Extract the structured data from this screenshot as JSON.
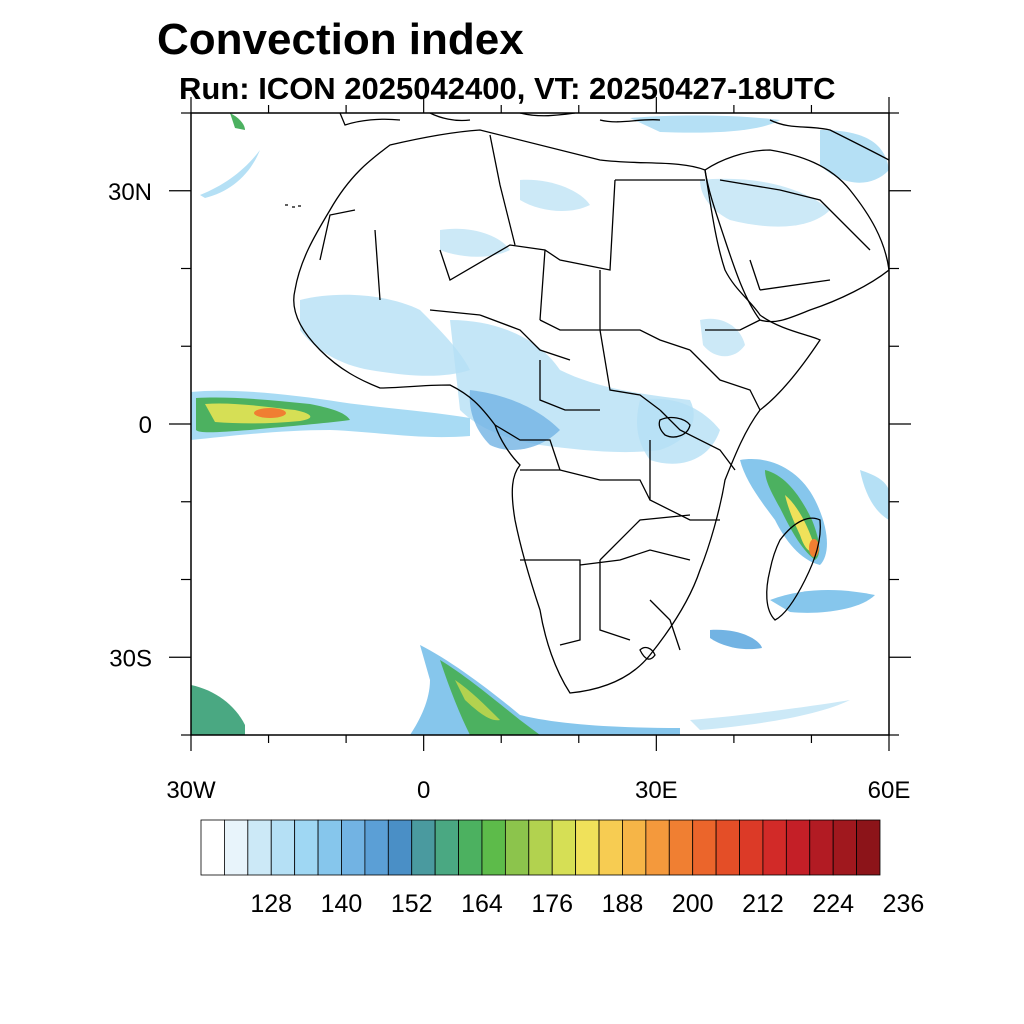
{
  "title": "Convection index",
  "subtitle": "Run: ICON 2025042400,  VT: 20250427-18UTC",
  "map": {
    "lon_range": [
      -30,
      60
    ],
    "lat_range": [
      -40,
      40
    ],
    "lon_ticks": [
      {
        "value": -30,
        "label": "30W"
      },
      {
        "value": 0,
        "label": "0"
      },
      {
        "value": 30,
        "label": "30E"
      },
      {
        "value": 60,
        "label": "60E"
      }
    ],
    "lat_ticks": [
      {
        "value": 30,
        "label": "30N"
      },
      {
        "value": 0,
        "label": "0"
      },
      {
        "value": -30,
        "label": "30S"
      }
    ]
  },
  "colorbar": {
    "levels": [
      120,
      124,
      128,
      132,
      136,
      140,
      144,
      148,
      152,
      156,
      160,
      164,
      168,
      172,
      176,
      180,
      184,
      188,
      192,
      196,
      200,
      204,
      208,
      212,
      216,
      220,
      224,
      228,
      232,
      236
    ],
    "labels": [
      "128",
      "140",
      "152",
      "164",
      "176",
      "188",
      "200",
      "212",
      "224",
      "236"
    ],
    "colors": [
      "#ffffff",
      "#e8f4fb",
      "#cce9f7",
      "#b5e0f5",
      "#9fd7f3",
      "#86c6ec",
      "#72b3e3",
      "#5b9fd6",
      "#4a8fc6",
      "#4a9a9f",
      "#4aa882",
      "#4cb160",
      "#5dbb4a",
      "#8cc44c",
      "#b2d24f",
      "#d6df55",
      "#f0e15a",
      "#f7cc52",
      "#f6b547",
      "#f4993c",
      "#f07f32",
      "#eb652b",
      "#e44e27",
      "#dc3a27",
      "#d22a28",
      "#c41f27",
      "#b21b23",
      "#a0181e",
      "#8c1419"
    ]
  },
  "colors": {
    "land": "#ffffff",
    "border": "#000000",
    "frame": "#000000"
  }
}
